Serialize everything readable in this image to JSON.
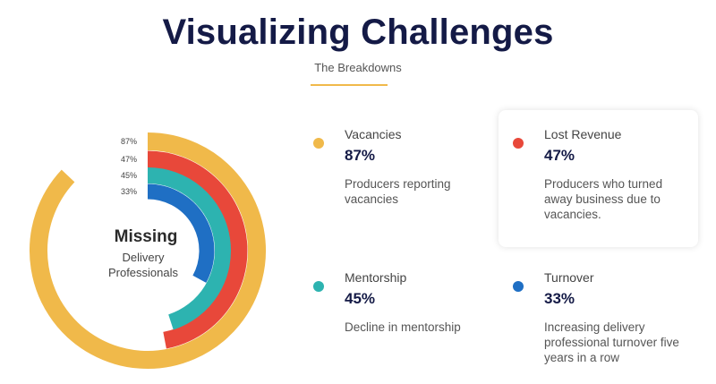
{
  "header": {
    "title": "Visualizing Challenges",
    "subtitle": "The Breakdowns"
  },
  "chart_data": {
    "type": "radial-bar",
    "center_title": "Missing",
    "center_subtitle_lines": [
      "Delivery",
      "Professionals"
    ],
    "max_value": 100,
    "series": [
      {
        "label": "87%",
        "value": 87,
        "color": "#f0b94a"
      },
      {
        "label": "47%",
        "value": 47,
        "color": "#e8483a"
      },
      {
        "label": "45%",
        "value": 45,
        "color": "#2db3b0"
      },
      {
        "label": "33%",
        "value": 33,
        "color": "#1f6fc4"
      }
    ]
  },
  "cards": [
    {
      "label": "Vacancies",
      "value": "87%",
      "description": "Producers reporting vacancies",
      "color": "#f0b94a"
    },
    {
      "label": "Lost Revenue",
      "value": "47%",
      "description": "Producers who turned away business due to vacancies.",
      "color": "#e8483a"
    },
    {
      "label": "Mentorship",
      "value": "45%",
      "description": "Decline in mentorship",
      "color": "#2db3b0"
    },
    {
      "label": "Turnover",
      "value": "33%",
      "description": "Increasing delivery professional turnover five years in a row",
      "color": "#1f6fc4"
    }
  ]
}
